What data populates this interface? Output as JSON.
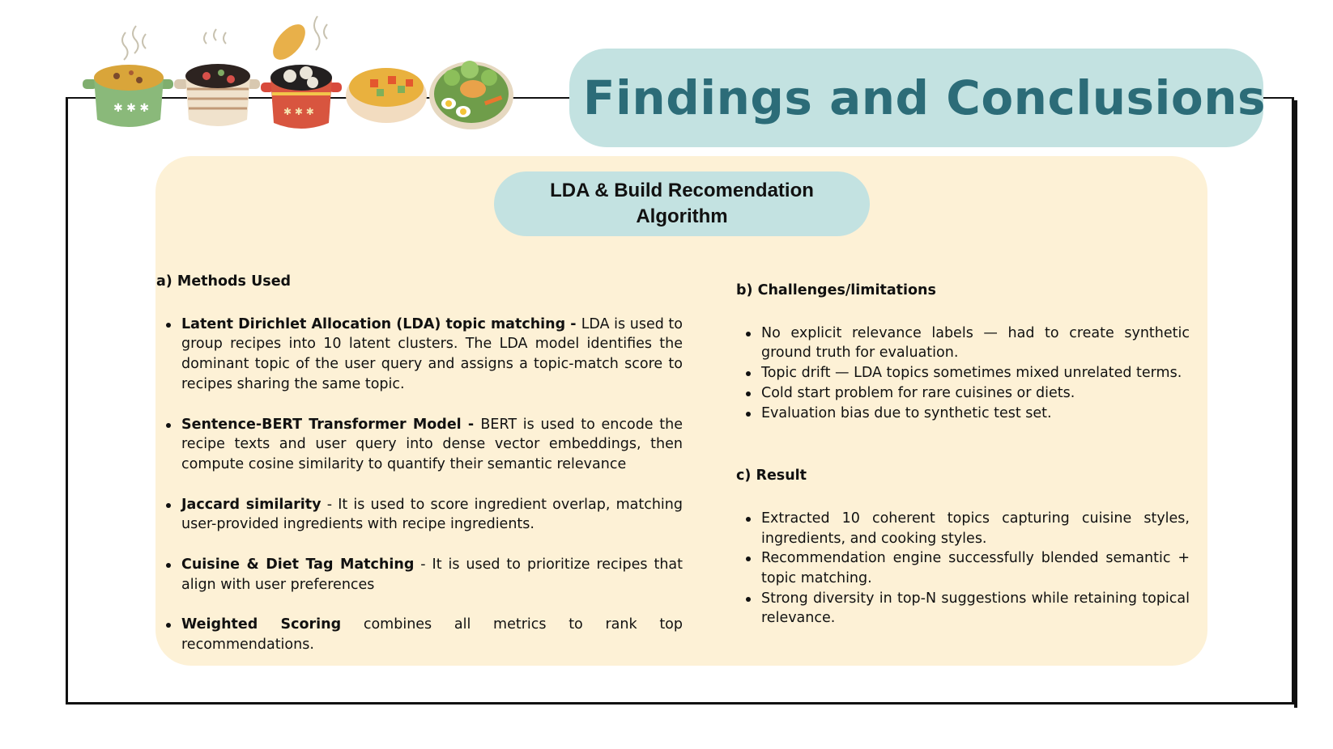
{
  "title": "Findings and Conclusions",
  "subtitle": "LDA & Build Recomendation Algorithm",
  "methods": {
    "heading": "a) Methods Used",
    "items": [
      {
        "bold": "Latent Dirichlet Allocation (LDA) topic matching - ",
        "text": "LDA is used to group recipes into 10 latent clusters. The LDA model identifies the dominant topic of the user query and assigns a topic-match score to recipes sharing the same topic."
      },
      {
        "bold": "Sentence-BERT Transformer Model - ",
        "text": "BERT is used to encode the recipe texts  and user query into dense vector embeddings, then compute cosine similarity to quantify their semantic relevance"
      },
      {
        "bold": "Jaccard similarity",
        "text": " - It is used to score ingredient overlap, matching user-provided ingredients with recipe ingredients."
      },
      {
        "bold": "Cuisine & Diet Tag Matching",
        "text": " - It is used to prioritize recipes that align with user preferences"
      },
      {
        "bold": "Weighted Scoring",
        "text": " combines all metrics to rank top recommendations."
      }
    ]
  },
  "challenges": {
    "heading": "b) Challenges/limitations",
    "items": [
      "No explicit relevance labels — had to create synthetic ground truth for evaluation.",
      "Topic drift — LDA topics sometimes mixed unrelated terms.",
      "Cold start problem for rare cuisines or diets.",
      "Evaluation bias due to synthetic test set."
    ]
  },
  "result": {
    "heading": "c) Result",
    "items": [
      "Extracted 10 coherent topics capturing cuisine styles, ingredients, and cooking styles.",
      "Recommendation engine successfully blended semantic + topic matching.",
      "Strong diversity in top-N suggestions while retaining topical relevance."
    ]
  },
  "colors": {
    "accent_pill": "#c3e2e1",
    "title_text": "#2c6c78",
    "panel": "#fdf1d6"
  },
  "decorations": [
    "soup-pot-icon",
    "stew-pot-icon",
    "dumpling-pot-icon",
    "veg-soup-bowl-icon",
    "salad-plate-icon"
  ]
}
